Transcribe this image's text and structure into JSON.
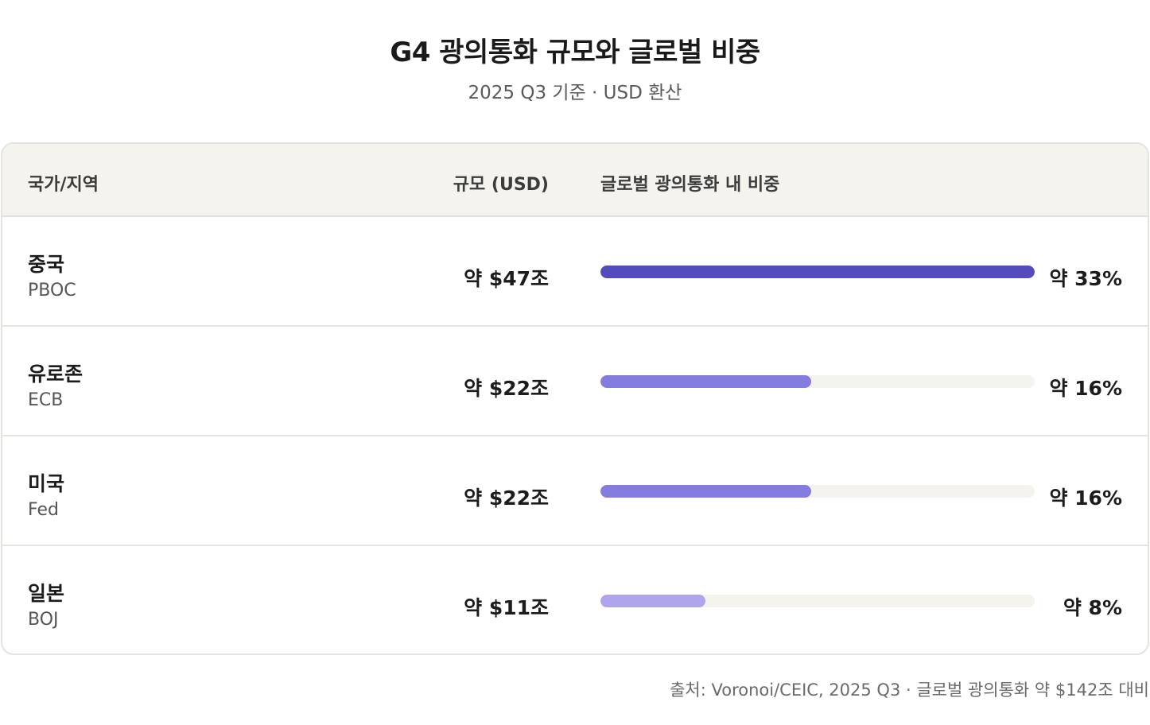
{
  "title": "G4 광의통화 규모와 글로벌 비중",
  "subtitle": "2025 Q3 기준 · USD 환산",
  "table": {
    "headers": {
      "country": "국가/지역",
      "size": "규모 (USD)",
      "share": "글로벌 광의통화 내 비중"
    }
  },
  "chart_data": {
    "type": "bar",
    "title": "G4 광의통화 규모와 글로벌 비중",
    "subtitle": "2025 Q3 기준 · USD 환산",
    "xlabel": "",
    "ylabel": "글로벌 광의통화 내 비중",
    "max_share": 33,
    "rows": [
      {
        "country": "중국",
        "bank": "PBOC",
        "amount_label": "약 $47조",
        "amount": 47,
        "share_label": "약 33%",
        "share": 33,
        "color": "#544bbd"
      },
      {
        "country": "유로존",
        "bank": "ECB",
        "amount_label": "약 $22조",
        "amount": 22,
        "share_label": "약 16%",
        "share": 16,
        "color": "#857ce0"
      },
      {
        "country": "미국",
        "bank": "Fed",
        "amount_label": "약 $22조",
        "amount": 22,
        "share_label": "약 16%",
        "share": 16,
        "color": "#857ce0"
      },
      {
        "country": "일본",
        "bank": "BOJ",
        "amount_label": "약 $11조",
        "amount": 11,
        "share_label": "약 8%",
        "share": 8,
        "color": "#aea5ec"
      }
    ]
  },
  "footer": "출처: Voronoi/CEIC, 2025 Q3 · 글로벌 광의통화 약 $142조 대비"
}
